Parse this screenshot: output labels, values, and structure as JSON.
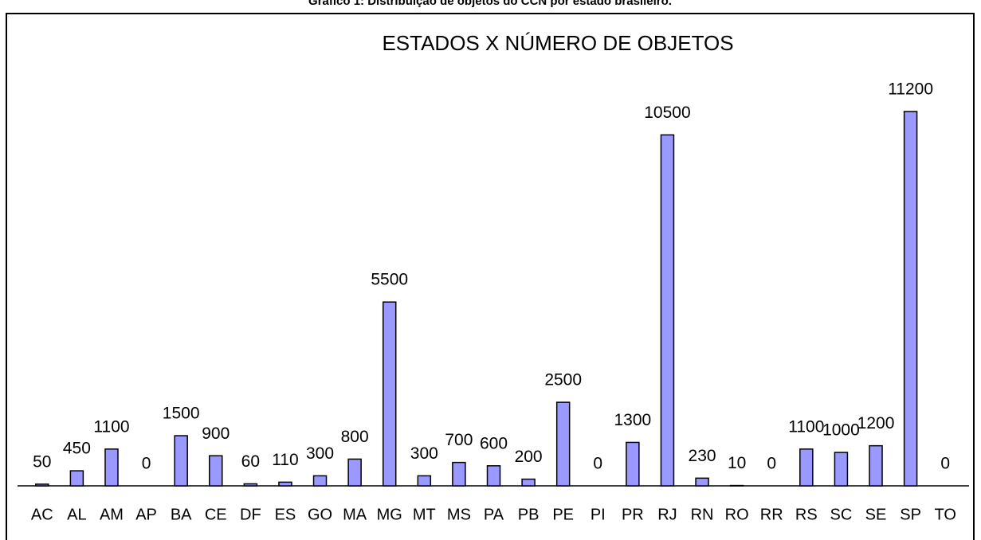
{
  "caption": "Gráfico 1: Distribuição de objetos do CCN por estado brasileiro.",
  "chart_data": {
    "type": "bar",
    "title": "ESTADOS X NÚMERO DE OBJETOS",
    "categories": [
      "AC",
      "AL",
      "AM",
      "AP",
      "BA",
      "CE",
      "DF",
      "ES",
      "GO",
      "MA",
      "MG",
      "MT",
      "MS",
      "PA",
      "PB",
      "PE",
      "PI",
      "PR",
      "RJ",
      "RN",
      "RO",
      "RR",
      "RS",
      "SC",
      "SE",
      "SP",
      "TO"
    ],
    "values": [
      50,
      450,
      1100,
      0,
      1500,
      900,
      60,
      110,
      300,
      800,
      5500,
      300,
      700,
      600,
      200,
      2500,
      0,
      1300,
      10500,
      230,
      10,
      0,
      1100,
      1000,
      1200,
      11200,
      0
    ],
    "color": "#9999ff",
    "ylim": [
      0,
      11200
    ]
  }
}
